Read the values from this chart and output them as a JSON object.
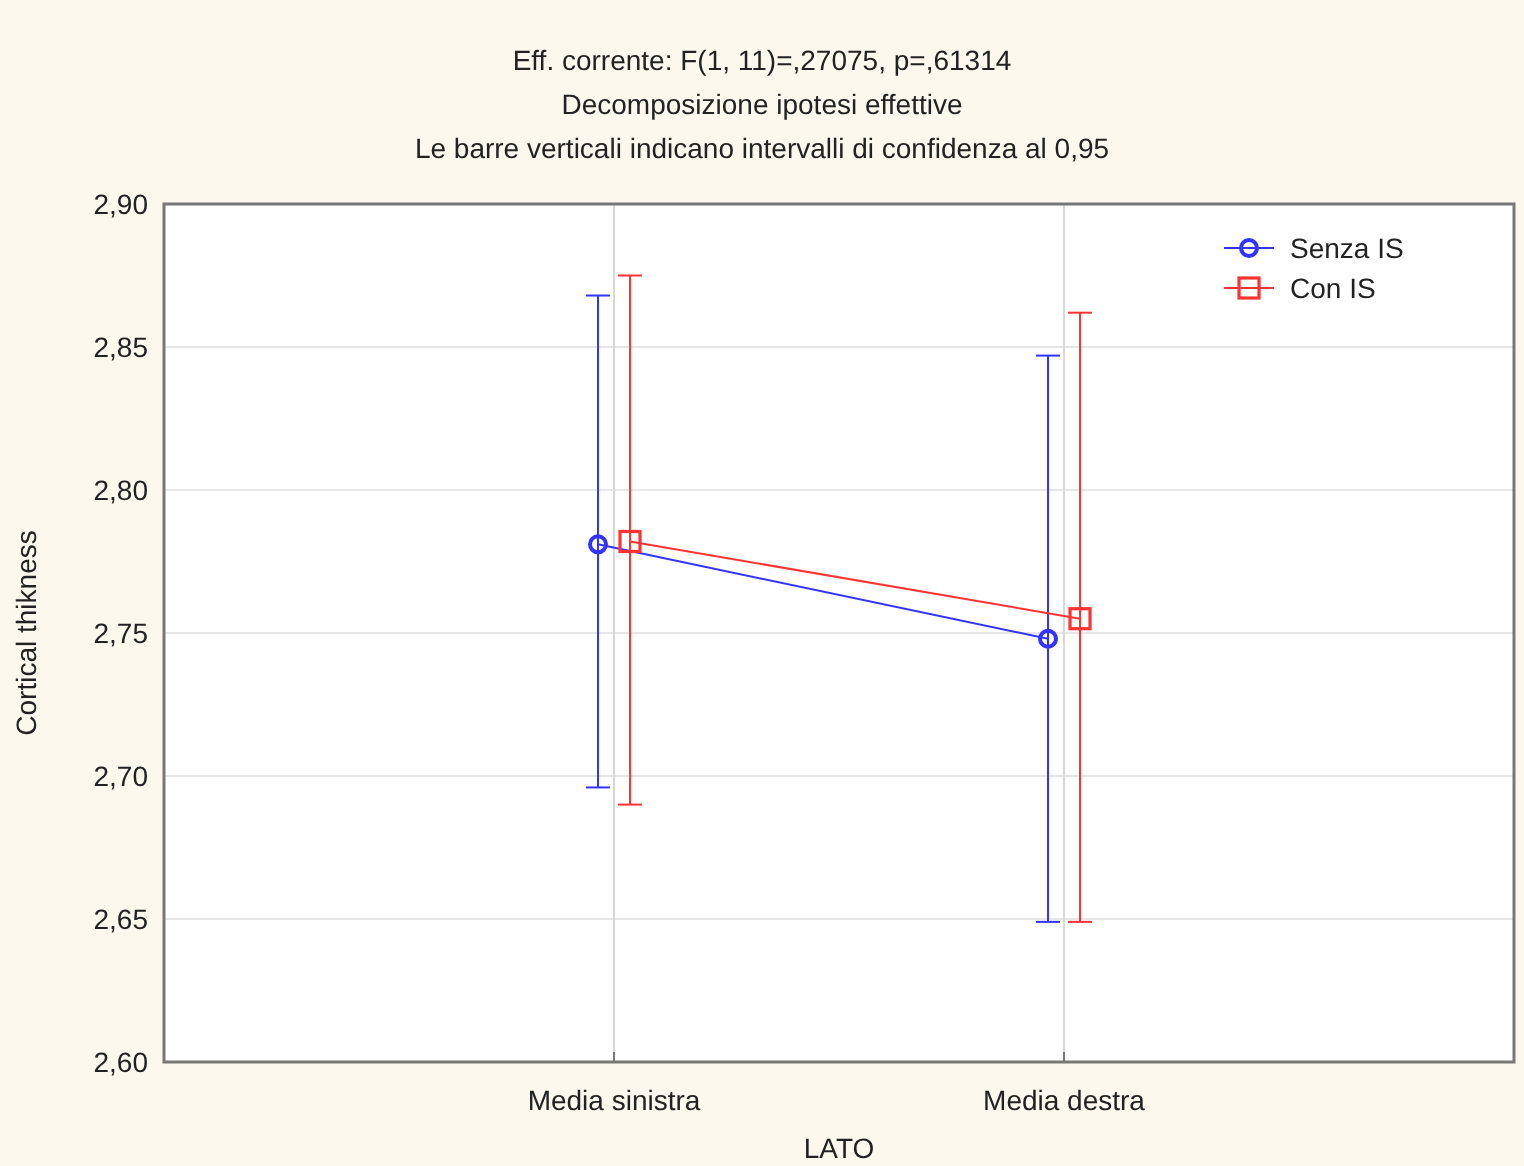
{
  "chart_data": {
    "type": "line",
    "title": "Eff. corrente:   F(1, 11)=,27075, p=,61314",
    "subtitle": "Decomposizione ipotesi effettive",
    "annotations": [
      "Le barre verticali indicano intervalli di confidenza al 0,95"
    ],
    "xlabel": "LATO",
    "ylabel": "Cortical thikness",
    "categories": [
      "Media sinistra",
      "Media destra"
    ],
    "series": [
      {
        "name": "Senza IS",
        "color": "#3333ff",
        "marker": "circle",
        "values": [
          2.781,
          2.748
        ],
        "errors": [
          [
            2.696,
            2.868
          ],
          [
            2.649,
            2.847
          ]
        ]
      },
      {
        "name": "Con IS",
        "color": "#ff3333",
        "marker": "square",
        "values": [
          2.782,
          2.755
        ],
        "errors": [
          [
            2.69,
            2.875
          ],
          [
            2.649,
            2.862
          ]
        ]
      }
    ],
    "ylim": [
      2.6,
      2.9
    ],
    "yticks": [
      {
        "value": 2.6,
        "label": "2,60"
      },
      {
        "value": 2.65,
        "label": "2,65"
      },
      {
        "value": 2.7,
        "label": "2,70"
      },
      {
        "value": 2.75,
        "label": "2,75"
      },
      {
        "value": 2.8,
        "label": "2,80"
      },
      {
        "value": 2.85,
        "label": "2,85"
      },
      {
        "value": 2.9,
        "label": "2,90"
      }
    ],
    "grid": true,
    "legend": "top right"
  }
}
